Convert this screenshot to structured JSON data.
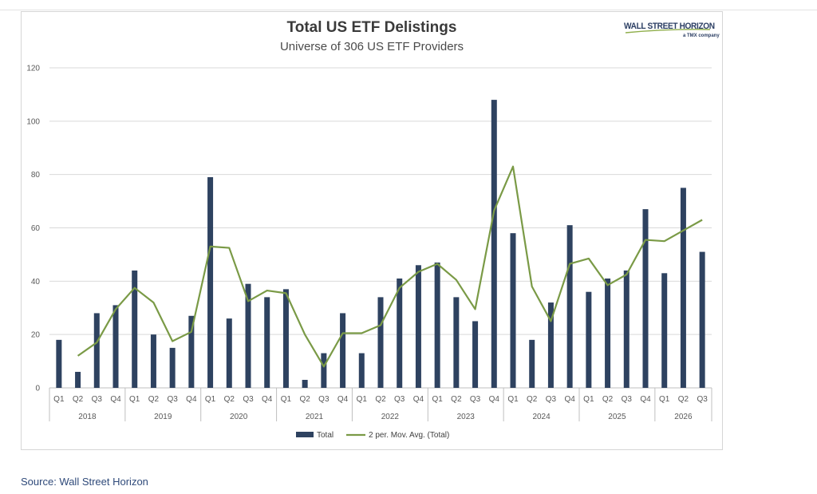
{
  "source": "Source: Wall Street Horizon",
  "logo": {
    "main": "WALL STREET HORIZON",
    "sub": "a TMX company"
  },
  "colors": {
    "bar": "#2e4260",
    "line": "#7a9a46",
    "grid": "#d9d9d9"
  },
  "chart_data": {
    "type": "bar",
    "title": "Total US ETF Delistings",
    "subtitle": "Universe of 306 US ETF Providers",
    "xlabel": "",
    "ylabel": "",
    "ylim": [
      0,
      120
    ],
    "yticks": [
      0,
      20,
      40,
      60,
      80,
      100,
      120
    ],
    "grid": true,
    "legend_position": "bottom",
    "years": [
      "2018",
      "2019",
      "2020",
      "2021",
      "2022",
      "2023",
      "2024",
      "2025",
      "2026"
    ],
    "categories": [
      "2018 Q1",
      "2018 Q2",
      "2018 Q3",
      "2018 Q4",
      "2019 Q1",
      "2019 Q2",
      "2019 Q3",
      "2019 Q4",
      "2020 Q1",
      "2020 Q2",
      "2020 Q3",
      "2020 Q4",
      "2021 Q1",
      "2021 Q2",
      "2021 Q3",
      "2021 Q4",
      "2022 Q1",
      "2022 Q2",
      "2022 Q3",
      "2022 Q4",
      "2023 Q1",
      "2023 Q2",
      "2023 Q3",
      "2023 Q4",
      "2024 Q1",
      "2024 Q2",
      "2024 Q3",
      "2024 Q4",
      "2025 Q1",
      "2025 Q2",
      "2025 Q3",
      "2025 Q4",
      "2026 Q1",
      "2026 Q2",
      "2026 Q3"
    ],
    "quarter_labels": [
      "Q1",
      "Q2",
      "Q3",
      "Q4",
      "Q1",
      "Q2",
      "Q3",
      "Q4",
      "Q1",
      "Q2",
      "Q3",
      "Q4",
      "Q1",
      "Q2",
      "Q3",
      "Q4",
      "Q1",
      "Q2",
      "Q3",
      "Q4",
      "Q1",
      "Q2",
      "Q3",
      "Q4",
      "Q1",
      "Q2",
      "Q3",
      "Q4",
      "Q1",
      "Q2",
      "Q3",
      "Q4",
      "Q1",
      "Q2",
      "Q3"
    ],
    "series": [
      {
        "name": "Total",
        "type": "bar",
        "values": [
          18,
          6,
          28,
          31,
          44,
          20,
          15,
          27,
          79,
          26,
          39,
          34,
          37,
          3,
          13,
          28,
          13,
          34,
          41,
          46,
          47,
          34,
          25,
          108,
          58,
          18,
          32,
          61,
          36,
          41,
          44,
          67,
          43,
          75,
          51
        ]
      },
      {
        "name": "2 per. Mov. Avg. (Total)",
        "type": "line",
        "values": [
          null,
          12,
          17,
          29.5,
          37.5,
          32,
          17.5,
          21,
          53,
          52.5,
          32.5,
          36.5,
          35.5,
          20,
          8,
          20.5,
          20.5,
          23.5,
          37.5,
          43.5,
          46.5,
          40.5,
          29.5,
          66.5,
          83,
          38,
          25,
          46.5,
          48.5,
          38.5,
          42.5,
          55.5,
          55,
          59,
          63
        ]
      }
    ]
  }
}
